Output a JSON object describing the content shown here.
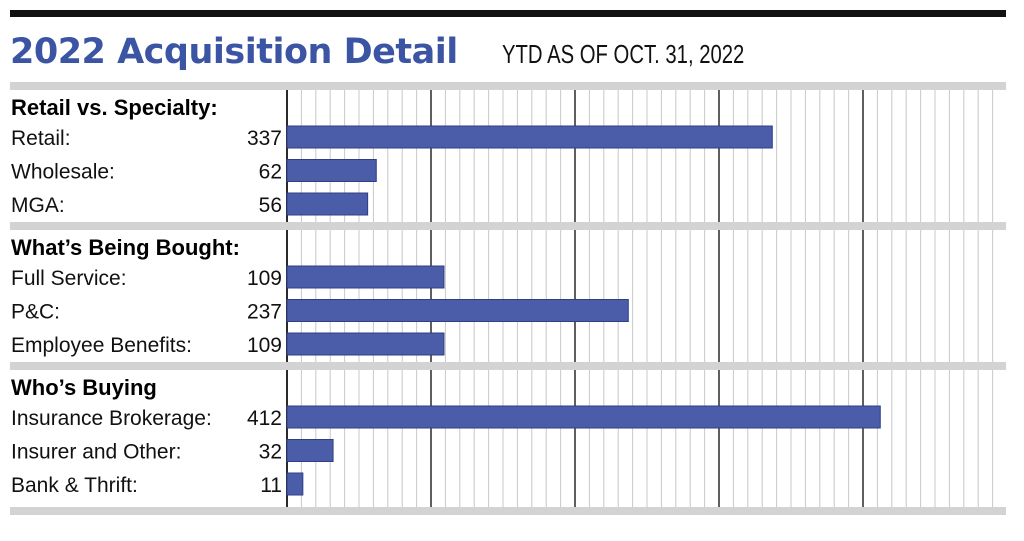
{
  "title": "2022 Acquisition Detail",
  "subtitle": "YTD AS OF OCT. 31, 2022",
  "colors": {
    "title": "#3c54a4",
    "bar": "#4b5ca8",
    "bar_edge": "#2f3f86",
    "band": "#d3d3d3",
    "grid_major": "#2a2a2a",
    "grid_minor": "#c8c8c8"
  },
  "chart_data": {
    "type": "bar",
    "orientation": "horizontal",
    "xlim": [
      0,
      500
    ],
    "grid": true,
    "groups": [
      {
        "header": "Retail vs. Specialty:",
        "items": [
          {
            "label": "Retail:",
            "value": 337
          },
          {
            "label": "Wholesale:",
            "value": 62
          },
          {
            "label": "MGA:",
            "value": 56
          }
        ]
      },
      {
        "header": "What’s Being Bought:",
        "items": [
          {
            "label": "Full Service:",
            "value": 109
          },
          {
            "label": "P&C:",
            "value": 237
          },
          {
            "label": "Employee Benefits:",
            "value": 109
          }
        ]
      },
      {
        "header": "Who’s Buying",
        "items": [
          {
            "label": "Insurance Brokerage:",
            "value": 412
          },
          {
            "label": "Insurer and Other:",
            "value": 32
          },
          {
            "label": "Bank & Thrift:",
            "value": 11
          }
        ]
      }
    ]
  }
}
